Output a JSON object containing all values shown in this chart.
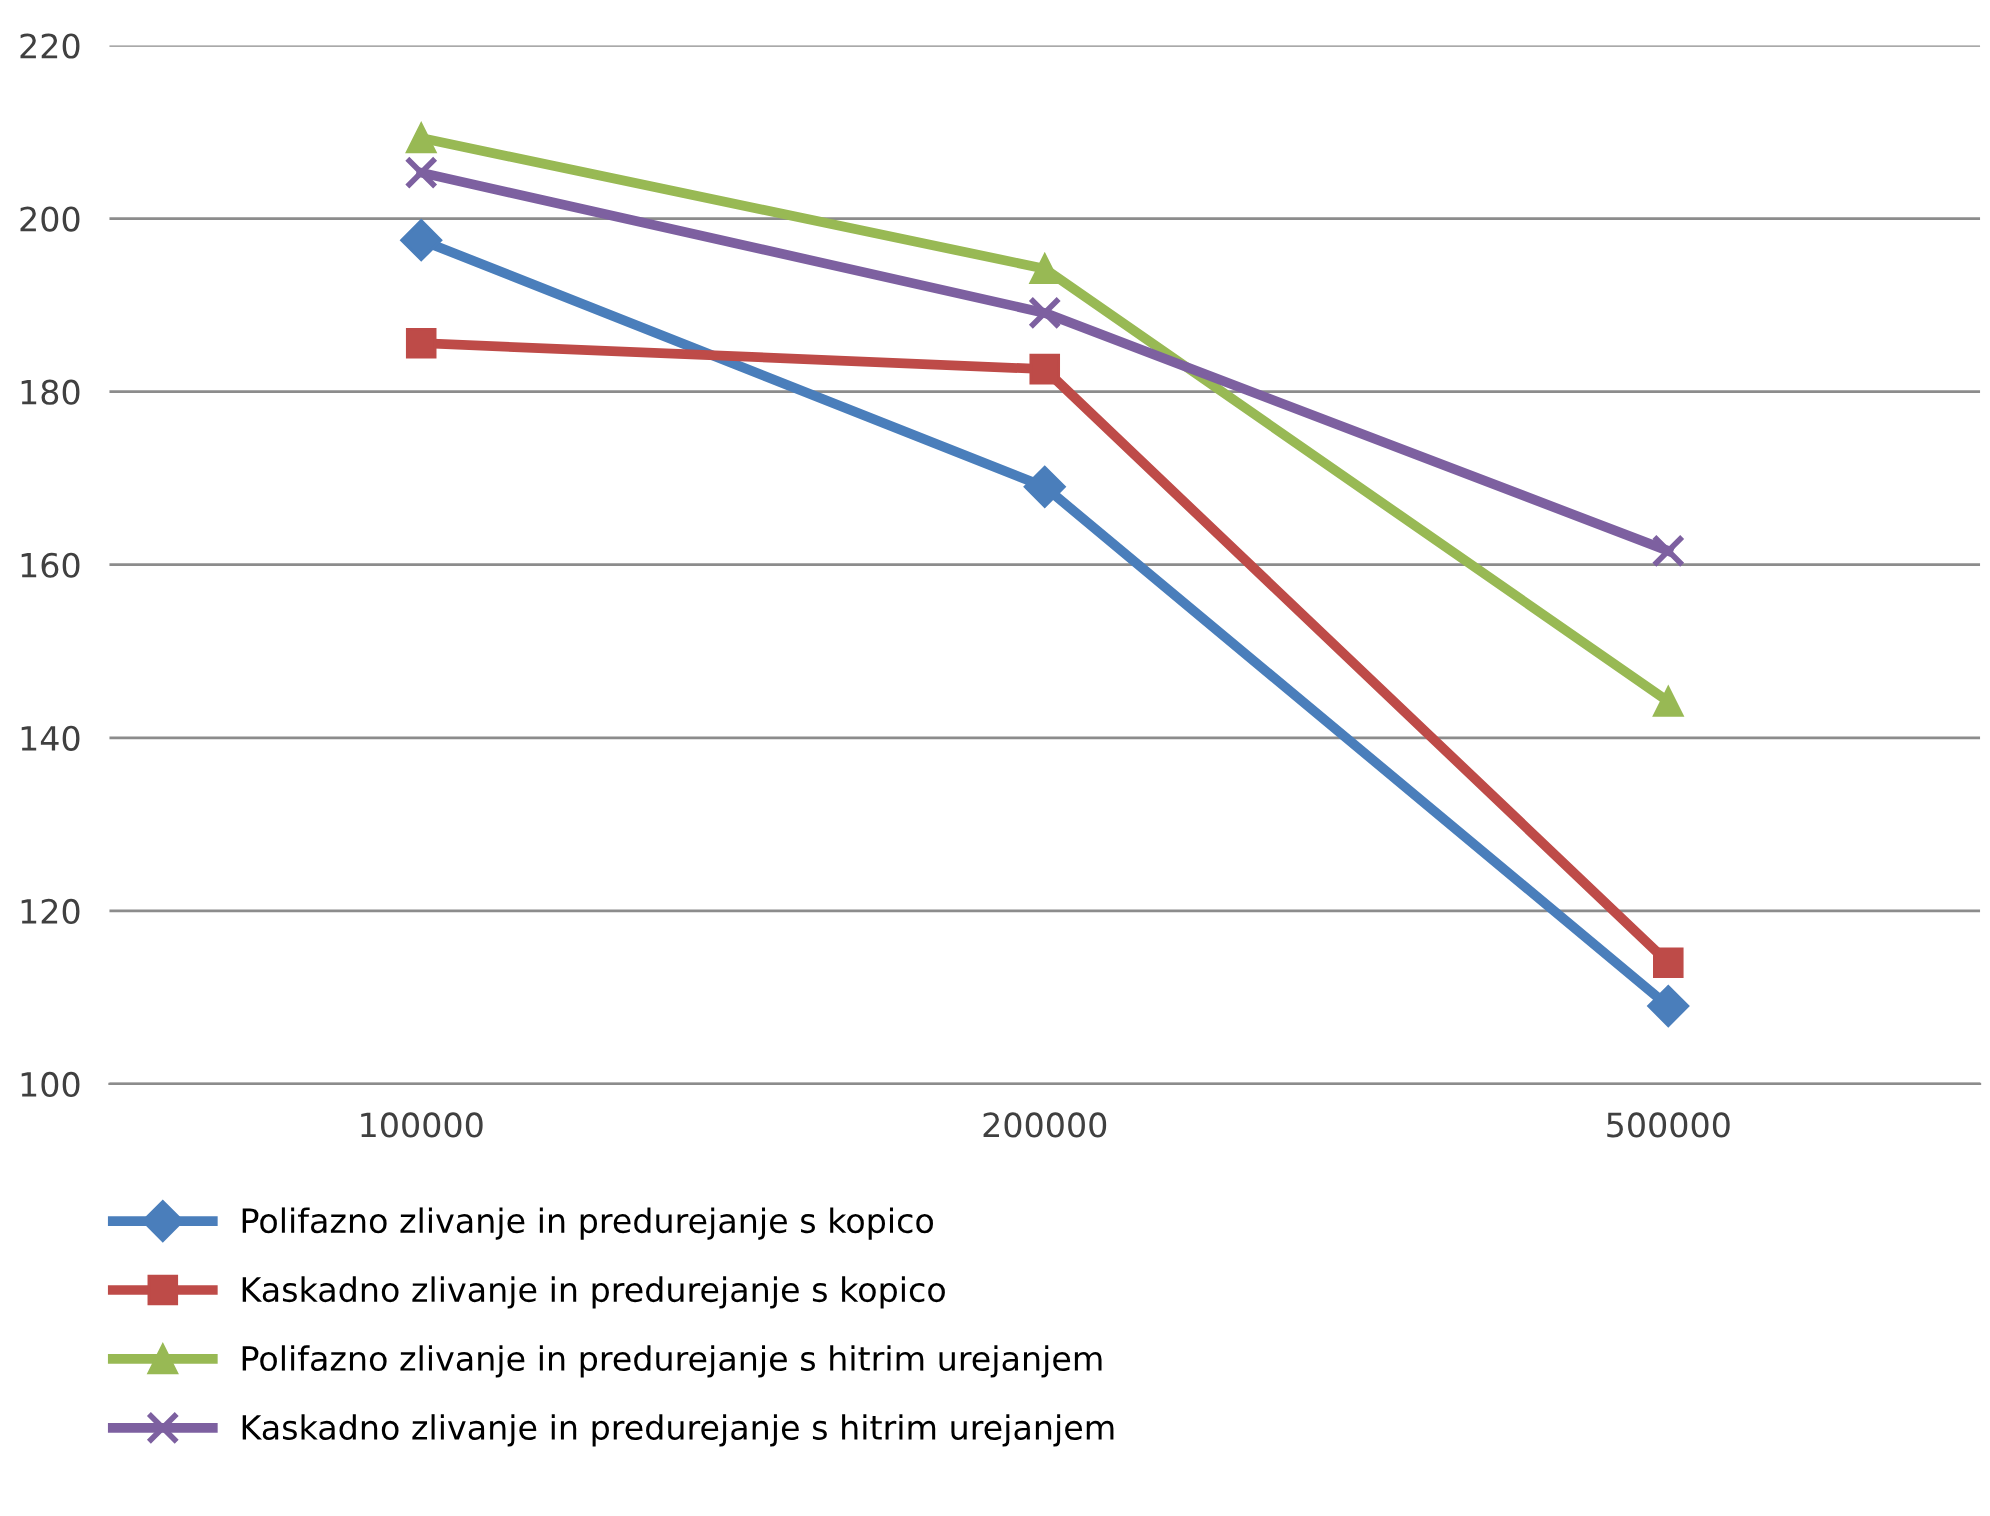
{
  "chart_data": {
    "type": "line",
    "categories": [
      "100000",
      "200000",
      "500000"
    ],
    "series": [
      {
        "name": "Polifazno zlivanje in predurejanje s kopico",
        "color": "#4a7ebb",
        "marker": "diamond",
        "values": [
          197.5,
          169,
          109
        ]
      },
      {
        "name": "Kaskadno zlivanje in predurejanje s kopico",
        "color": "#be4b48",
        "marker": "square",
        "values": [
          185.6,
          182.6,
          114
        ]
      },
      {
        "name": "Polifazno zlivanje in predurejanje s hitrim urejanjem",
        "color": "#98b954",
        "marker": "triangle",
        "values": [
          209.3,
          194.2,
          144.2
        ]
      },
      {
        "name": "Kaskadno zlivanje in predurejanje s hitrim urejanjem",
        "color": "#7d60a0",
        "marker": "cross",
        "values": [
          205.3,
          189.1,
          161.6
        ]
      }
    ],
    "ylim": [
      100,
      220
    ],
    "yticks": [
      100,
      120,
      140,
      160,
      180,
      200,
      220
    ],
    "grid": "y",
    "legend": "bottom",
    "line_style": "solid"
  }
}
